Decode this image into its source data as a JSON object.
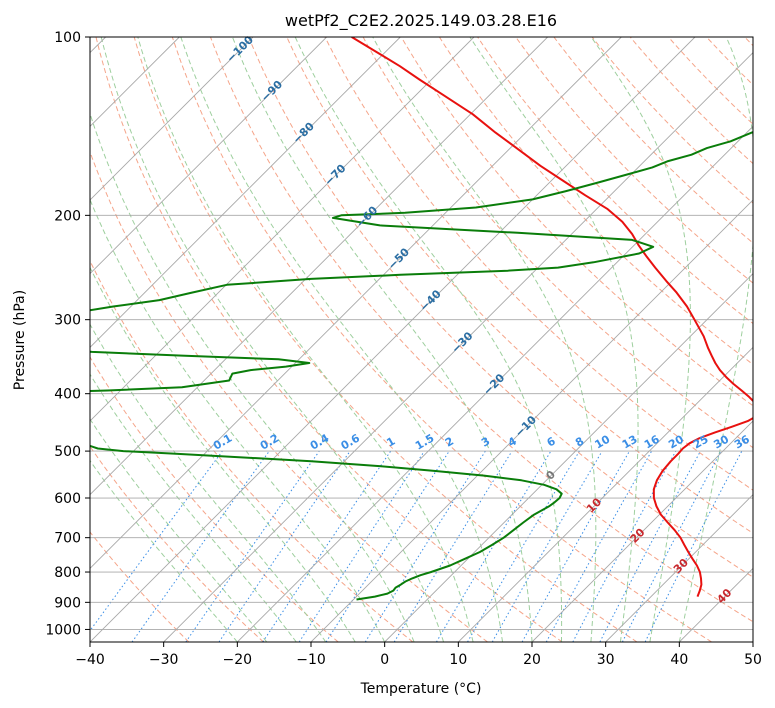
{
  "chart_data": {
    "type": "line",
    "subtype": "skew-t log-p diagram",
    "title": "wetPf2_C2E2.2025.149.03.28.E16",
    "xlabel": "Temperature (°C)",
    "ylabel": "Pressure (hPa)",
    "xlim": [
      -40,
      50
    ],
    "ylim": [
      1050,
      100
    ],
    "y_scale": "log",
    "x_ticks": [
      -40,
      -30,
      -20,
      -10,
      0,
      10,
      20,
      30,
      40,
      50
    ],
    "x_tick_labels": [
      "−40",
      "−30",
      "−20",
      "−10",
      "0",
      "10",
      "20",
      "30",
      "40",
      "50"
    ],
    "y_ticks": [
      100,
      200,
      300,
      400,
      500,
      600,
      700,
      800,
      900,
      1000
    ],
    "y_tick_labels": [
      "100",
      "200",
      "300",
      "400",
      "500",
      "600",
      "700",
      "800",
      "900",
      "1000"
    ],
    "grid": true,
    "colors": {
      "temperature": "#e8110f",
      "dewpoint": "#0a7d0a",
      "isotherm": "#a8a8a8",
      "dry_adiabat": "#f5a58a",
      "moist_adiabat": "#9ecf9e",
      "mixing_ratio": "#3a8ee6",
      "isotherm_label_warm": "#c8282d",
      "isotherm_label_cold": "#2b6ea3",
      "isotherm_label_zero": "#777777",
      "mixing_label": "#3a8ee6"
    },
    "series": [
      {
        "key": "temperature",
        "p": [
          880,
          860,
          840,
          820,
          800,
          780,
          760,
          740,
          720,
          700,
          680,
          660,
          640,
          620,
          600,
          580,
          560,
          540,
          520,
          505,
          495,
          485,
          475,
          465,
          455,
          445,
          435,
          425,
          415,
          405,
          395,
          385,
          375,
          365,
          355,
          345,
          335,
          320,
          300,
          285,
          270,
          258,
          245,
          235,
          225,
          215,
          205,
          195,
          185,
          175,
          165,
          155,
          145,
          135,
          125,
          118,
          112,
          106,
          100
        ],
        "t": [
          36.3,
          35.8,
          35.2,
          34.3,
          33.3,
          32.0,
          30.5,
          29.0,
          27.5,
          26.0,
          24.2,
          22.2,
          20.2,
          18.5,
          17.0,
          15.8,
          15.0,
          14.5,
          14.3,
          14.3,
          14.2,
          14.4,
          15.1,
          16.4,
          17.9,
          19.3,
          19.9,
          19.4,
          17.9,
          16.2,
          14.3,
          12.3,
          10.4,
          8.6,
          7.0,
          5.5,
          4.0,
          1.8,
          -1.7,
          -4.5,
          -7.8,
          -10.8,
          -14.1,
          -16.7,
          -19.3,
          -21.8,
          -24.8,
          -28.6,
          -33.4,
          -38.3,
          -43.5,
          -48.6,
          -54.1,
          -59.7,
          -66.5,
          -71.6,
          -76.1,
          -81.2,
          -86.6
        ]
      },
      {
        "key": "dewpoint",
        "p": [
          890,
          880,
          870,
          860,
          850,
          840,
          830,
          820,
          810,
          800,
          780,
          760,
          740,
          720,
          700,
          680,
          660,
          640,
          620,
          610,
          600,
          590,
          580,
          570,
          560,
          550,
          540,
          530,
          520,
          505,
          500,
          495,
          490,
          485,
          480,
          475,
          470,
          465,
          460,
          455,
          440,
          425,
          410,
          400,
          395,
          390,
          380,
          370,
          365,
          360,
          355,
          350,
          345,
          340,
          335,
          330,
          320,
          310,
          300,
          295,
          290,
          285,
          278,
          270,
          262,
          256,
          252,
          248,
          245,
          240,
          232,
          226,
          220,
          214,
          208,
          202,
          200,
          198,
          194,
          188,
          182,
          176,
          170,
          166,
          162,
          158,
          154,
          150,
          146,
          142,
          138,
          134,
          130,
          126,
          122,
          118,
          114,
          110,
          106,
          102,
          100
        ],
        "t": [
          -9.6,
          -7.5,
          -6.2,
          -5.8,
          -5.9,
          -5.6,
          -5.4,
          -4.9,
          -4.2,
          -3.2,
          -1.5,
          -0.4,
          0.7,
          1.4,
          2.0,
          2.3,
          2.6,
          3.0,
          3.9,
          4.1,
          4.2,
          3.9,
          2.6,
          0.3,
          -3.4,
          -9.1,
          -16.5,
          -24.6,
          -34.5,
          -53.9,
          -61.4,
          -65.2,
          -66.6,
          -68.4,
          -70.3,
          -71.9,
          -73.4,
          -74.9,
          -76.3,
          -77.7,
          -80.0,
          -82.0,
          -84.0,
          -84.8,
          -71.8,
          -62.1,
          -56.6,
          -57.1,
          -55.1,
          -50.8,
          -48.1,
          -52.8,
          -66.4,
          -79.1,
          -86.3,
          -88.0,
          -90.0,
          -90.0,
          -89.5,
          -87.9,
          -85.5,
          -82.4,
          -77.0,
          -73.6,
          -69.9,
          -59.3,
          -47.7,
          -33.7,
          -27.3,
          -23.2,
          -18.2,
          -17.2,
          -21.0,
          -37.5,
          -57.2,
          -64.6,
          -63.8,
          -55.5,
          -46.6,
          -40.0,
          -36.6,
          -33.4,
          -30.2,
          -28.1,
          -26.8,
          -24.5,
          -23.3,
          -21.0,
          -19.7,
          -18.2,
          -16.8,
          -15.4,
          -14.2,
          -13.6,
          -13.5,
          -12.6,
          -12.0,
          -11.5,
          -11.0,
          -10.5,
          -10.2
        ]
      }
    ],
    "isotherm_labels": [
      "−100",
      "−90",
      "−80",
      "−70",
      "−60",
      "−50",
      "−40",
      "−30",
      "−20",
      "−10",
      "0",
      "10",
      "20",
      "30",
      "40"
    ],
    "mixing_ratio_labels": [
      "0.1",
      "0.2",
      "0.4",
      "0.6",
      "1",
      "1.5",
      "2",
      "3",
      "4",
      "6",
      "8",
      "10",
      "13",
      "16",
      "20",
      "25",
      "30",
      "36"
    ]
  }
}
